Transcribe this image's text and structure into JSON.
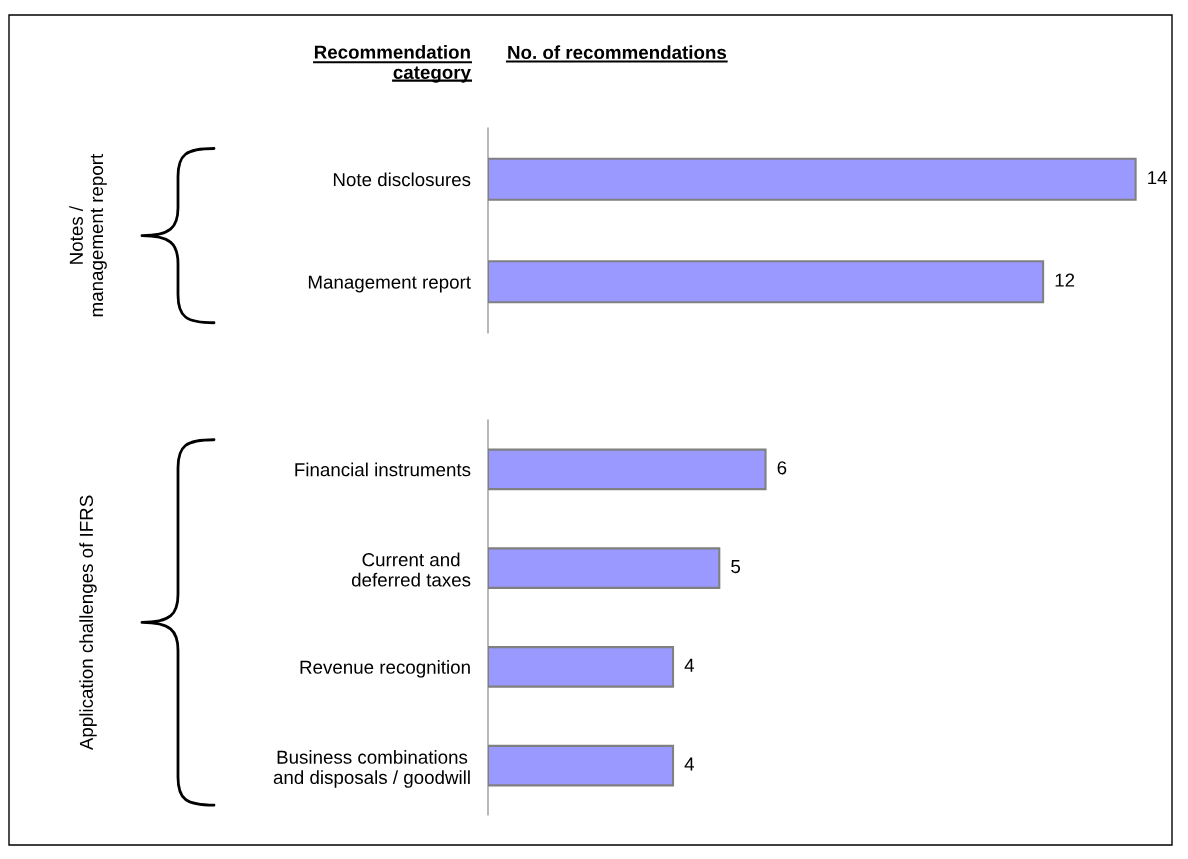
{
  "chart_data": [
    {
      "type": "bar",
      "orientation": "horizontal",
      "xlabel": "No. of recommendations",
      "annotations": [
        "Recommendation\ncategory"
      ],
      "ylabel": "Notes /\nmanagement report",
      "categories": [
        "Note disclosures",
        "Management report"
      ],
      "values": [
        14,
        12
      ],
      "color": "#9999ff",
      "tick_labels": "y",
      "data_labels": true
    },
    {
      "type": "bar",
      "orientation": "horizontal",
      "ylabel": "Application challenges of IFRS",
      "categories": [
        "Financial instruments",
        "Current and\ndeferred taxes",
        "Revenue recognition",
        "Business combinations\nand disposals / goodwill"
      ],
      "values": [
        6,
        5,
        4,
        4
      ],
      "color": "#9999ff",
      "tick_labels": "y",
      "data_labels": true
    }
  ]
}
